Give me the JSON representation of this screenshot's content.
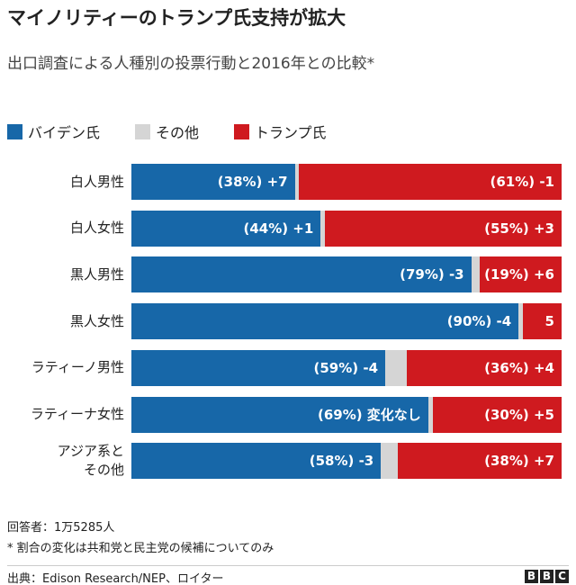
{
  "chart_data": {
    "type": "stacked-bar-horizontal",
    "title": "マイノリティーのトランプ氏支持が拡大",
    "subtitle": "出口調査による人種別の投票行動と2016年との比較*",
    "categories": [
      "白人男性",
      "白人女性",
      "黒人男性",
      "黒人女性",
      "ラティーノ男性",
      "ラティーナ女性",
      "アジア系と\nその他"
    ],
    "xlim": [
      0,
      100
    ],
    "series": [
      {
        "name": "バイデン氏",
        "color": "#1767a8",
        "values": [
          38,
          44,
          79,
          90,
          59,
          69,
          58
        ],
        "value_labels": [
          "(38%) +7",
          "(44%) +1",
          "(79%) -3",
          "(90%) -4",
          "(59%) -4",
          "(69%) 変化なし",
          "(58%) -3"
        ]
      },
      {
        "name": "その他",
        "color": "#d5d5d5",
        "values": [
          1,
          1,
          2,
          1,
          5,
          1,
          4
        ]
      },
      {
        "name": "トランプ氏",
        "color": "#cf1a1f",
        "values": [
          61,
          55,
          19,
          9,
          36,
          30,
          38
        ],
        "value_labels": [
          "(61%) -1",
          "(55%) +3",
          "(19%) +6",
          "5",
          "(36%) +4",
          "(30%) +5",
          "(38%) +7"
        ]
      }
    ],
    "legend": "top-left",
    "notes": [
      "回答者：1万5285人",
      "* 割合の変化は共和党と民主党の候補についてのみ"
    ],
    "source": "出典：Edison Research/NEP、ロイター",
    "logo": [
      "B",
      "B",
      "C"
    ]
  }
}
